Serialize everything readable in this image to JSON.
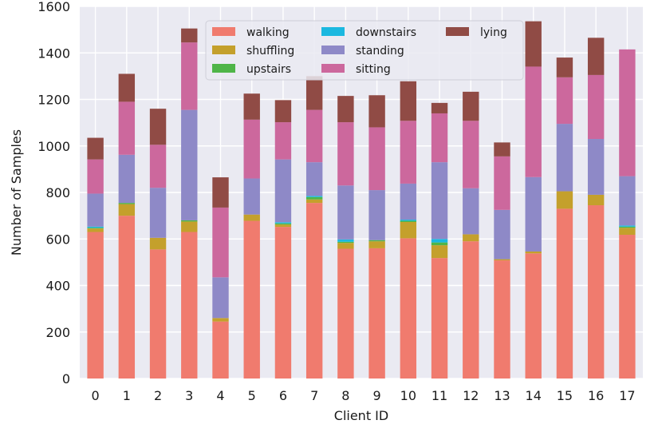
{
  "chart_data": {
    "type": "bar",
    "stacked": true,
    "title": "",
    "xlabel": "Client ID",
    "ylabel": "Number of Samples",
    "ylim": [
      0,
      1600
    ],
    "yticks": [
      0,
      200,
      400,
      600,
      800,
      1000,
      1200,
      1400,
      1600
    ],
    "grid": true,
    "legend_position": "top-center",
    "categories": [
      "0",
      "1",
      "2",
      "3",
      "4",
      "5",
      "6",
      "7",
      "8",
      "9",
      "10",
      "11",
      "12",
      "13",
      "14",
      "15",
      "16",
      "17"
    ],
    "series": [
      {
        "name": "walking",
        "color": "#F07B6E",
        "values": [
          630,
          700,
          555,
          630,
          245,
          678,
          652,
          755,
          558,
          560,
          603,
          518,
          590,
          508,
          538,
          730,
          745,
          618
        ]
      },
      {
        "name": "shuffling",
        "color": "#C4A02C",
        "values": [
          15,
          50,
          50,
          45,
          15,
          27,
          10,
          15,
          25,
          30,
          70,
          55,
          30,
          5,
          8,
          75,
          45,
          30
        ]
      },
      {
        "name": "upstairs",
        "color": "#4FB548",
        "values": [
          3,
          5,
          0,
          5,
          0,
          0,
          5,
          10,
          5,
          5,
          5,
          12,
          0,
          0,
          0,
          0,
          0,
          5
        ]
      },
      {
        "name": "downstairs",
        "color": "#1BB8E0",
        "values": [
          5,
          0,
          0,
          0,
          0,
          0,
          5,
          5,
          10,
          0,
          5,
          15,
          0,
          0,
          0,
          0,
          0,
          5
        ]
      },
      {
        "name": "standing",
        "color": "#8E89C7",
        "values": [
          142,
          207,
          215,
          475,
          175,
          155,
          270,
          145,
          232,
          215,
          155,
          330,
          198,
          212,
          320,
          290,
          240,
          212
        ]
      },
      {
        "name": "sitting",
        "color": "#CC689D",
        "values": [
          147,
          228,
          185,
          290,
          300,
          253,
          160,
          225,
          272,
          270,
          270,
          210,
          290,
          230,
          475,
          200,
          275,
          545
        ]
      },
      {
        "name": "lying",
        "color": "#904B45",
        "values": [
          93,
          120,
          155,
          60,
          130,
          112,
          95,
          145,
          113,
          138,
          170,
          45,
          125,
          60,
          195,
          85,
          160,
          0
        ]
      }
    ]
  }
}
